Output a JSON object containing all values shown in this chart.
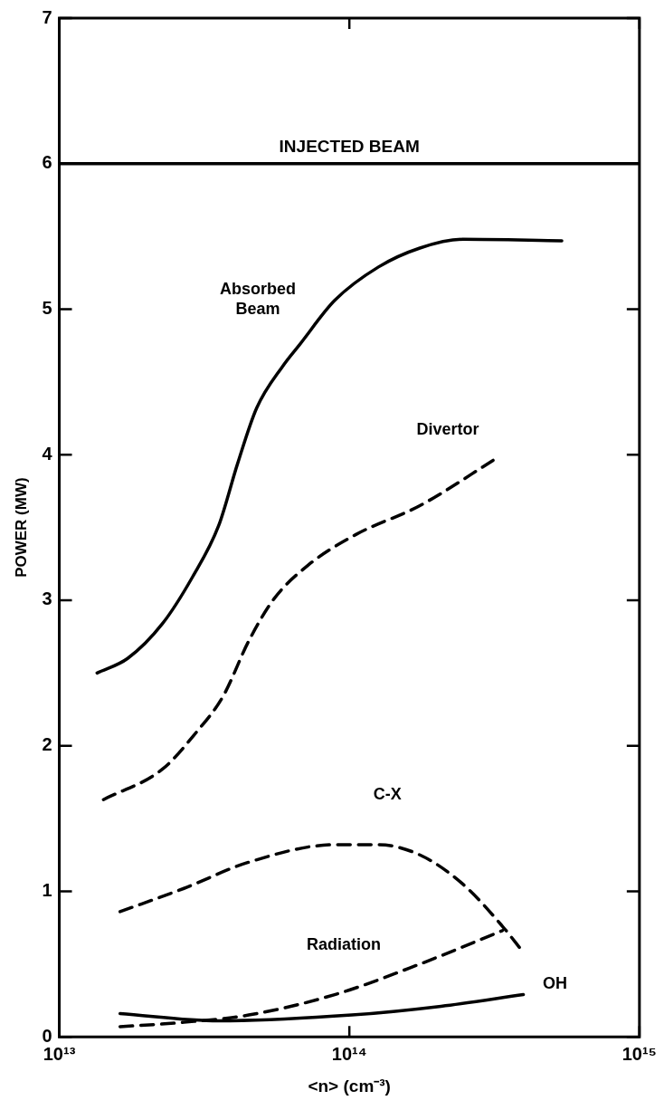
{
  "chart_data": {
    "type": "line",
    "xlabel": "<n> (cm⁻³)",
    "ylabel": "POWER (MW)",
    "log": "x",
    "grid": false,
    "legend": false,
    "marker": "none",
    "xlim": [
      10000000000000.0,
      1000000000000000.0
    ],
    "xticks": [
      {
        "value": 10000000000000.0,
        "label": "10¹³"
      },
      {
        "value": 100000000000000.0,
        "label": "10¹⁴"
      },
      {
        "value": 1000000000000000.0,
        "label": "10¹⁵"
      }
    ],
    "ylim": [
      0,
      7
    ],
    "yticks": [
      0,
      1,
      2,
      3,
      4,
      5,
      6,
      7
    ],
    "ref_lines": [
      {
        "axis": "y",
        "value": 6,
        "label": "INJECTED BEAM",
        "color": "#000000",
        "line_style": "solid"
      }
    ],
    "series": [
      {
        "name": "Absorbed Beam",
        "color": "#000000",
        "line_style": "solid",
        "x": [
          13500000000000.0,
          17200000000000.0,
          22700000000000.0,
          28800000000000.0,
          35400000000000.0,
          41200000000000.0,
          47900000000000.0,
          59000000000000.0,
          67600000000000.0,
          89000000000000.0,
          126000000000000.0,
          175000000000000.0,
          246000000000000.0,
          540000000000000.0
        ],
        "values": [
          2.5,
          2.6,
          2.84,
          3.16,
          3.51,
          3.94,
          4.32,
          4.61,
          4.76,
          5.06,
          5.29,
          5.42,
          5.48,
          5.47
        ]
      },
      {
        "name": "Divertor",
        "color": "#000000",
        "line_style": "dashed",
        "x": [
          14200000000000.0,
          22700000000000.0,
          29600000000000.0,
          36700000000000.0,
          45000000000000.0,
          55000000000000.0,
          72000000000000.0,
          105000000000000.0,
          175000000000000.0,
          324000000000000.0
        ],
        "values": [
          1.63,
          1.84,
          2.09,
          2.34,
          2.72,
          3.01,
          3.24,
          3.45,
          3.65,
          3.98
        ]
      },
      {
        "name": "C-X",
        "color": "#000000",
        "line_style": "dashed",
        "x": [
          16200000000000.0,
          26900000000000.0,
          45000000000000.0,
          89000000000000.0,
          126000000000000.0,
          175000000000000.0,
          246000000000000.0,
          337000000000000.0,
          398000000000000.0
        ],
        "values": [
          0.86,
          1.02,
          1.2,
          1.32,
          1.32,
          1.25,
          1.05,
          0.76,
          0.58
        ]
      },
      {
        "name": "Radiation",
        "color": "#000000",
        "line_style": "dashed",
        "x": [
          16200000000000.0,
          26900000000000.0,
          45000000000000.0,
          89000000000000.0,
          175000000000000.0,
          337000000000000.0
        ],
        "values": [
          0.07,
          0.1,
          0.15,
          0.29,
          0.5,
          0.73
        ]
      },
      {
        "name": "OH",
        "color": "#000000",
        "line_style": "solid",
        "x": [
          16200000000000.0,
          35400000000000.0,
          102000000000000.0,
          207000000000000.0,
          398000000000000.0
        ],
        "values": [
          0.16,
          0.11,
          0.15,
          0.21,
          0.29
        ]
      }
    ]
  }
}
